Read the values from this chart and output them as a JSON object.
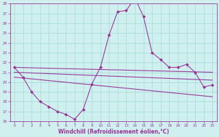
{
  "xlabel": "Windchill (Refroidissement éolien,°C)",
  "xlim": [
    -0.5,
    23.5
  ],
  "ylim": [
    16,
    28
  ],
  "yticks": [
    16,
    17,
    18,
    19,
    20,
    21,
    22,
    23,
    24,
    25,
    26,
    27,
    28
  ],
  "xticks": [
    0,
    1,
    2,
    3,
    4,
    5,
    6,
    7,
    8,
    9,
    10,
    11,
    12,
    13,
    14,
    15,
    16,
    17,
    18,
    19,
    20,
    21,
    22,
    23
  ],
  "bg_color": "#d0f0f0",
  "line_color": "#993399",
  "grid_color": "#a0d8d8",
  "lines": [
    {
      "x": [
        0,
        1,
        2,
        3,
        4,
        5,
        6,
        7,
        8,
        9,
        10,
        11,
        12,
        13,
        14,
        15,
        16,
        17,
        18,
        19,
        20,
        21,
        22,
        23
      ],
      "y": [
        21.5,
        20.5,
        19.0,
        18.0,
        17.5,
        17.0,
        16.7,
        16.2,
        17.2,
        19.8,
        21.5,
        24.8,
        27.2,
        27.3,
        28.6,
        26.7,
        23.0,
        22.3,
        21.5,
        21.5,
        21.8,
        21.0,
        19.5,
        19.7
      ],
      "marker": "D",
      "markersize": 2.0,
      "lw": 0.8
    },
    {
      "x": [
        0,
        23
      ],
      "y": [
        21.5,
        21.0
      ],
      "marker": null,
      "markersize": 0,
      "lw": 0.8
    },
    {
      "x": [
        0,
        23
      ],
      "y": [
        21.0,
        20.2
      ],
      "marker": null,
      "markersize": 0,
      "lw": 0.8
    },
    {
      "x": [
        0,
        23
      ],
      "y": [
        20.5,
        18.5
      ],
      "marker": null,
      "markersize": 0,
      "lw": 0.8
    }
  ]
}
